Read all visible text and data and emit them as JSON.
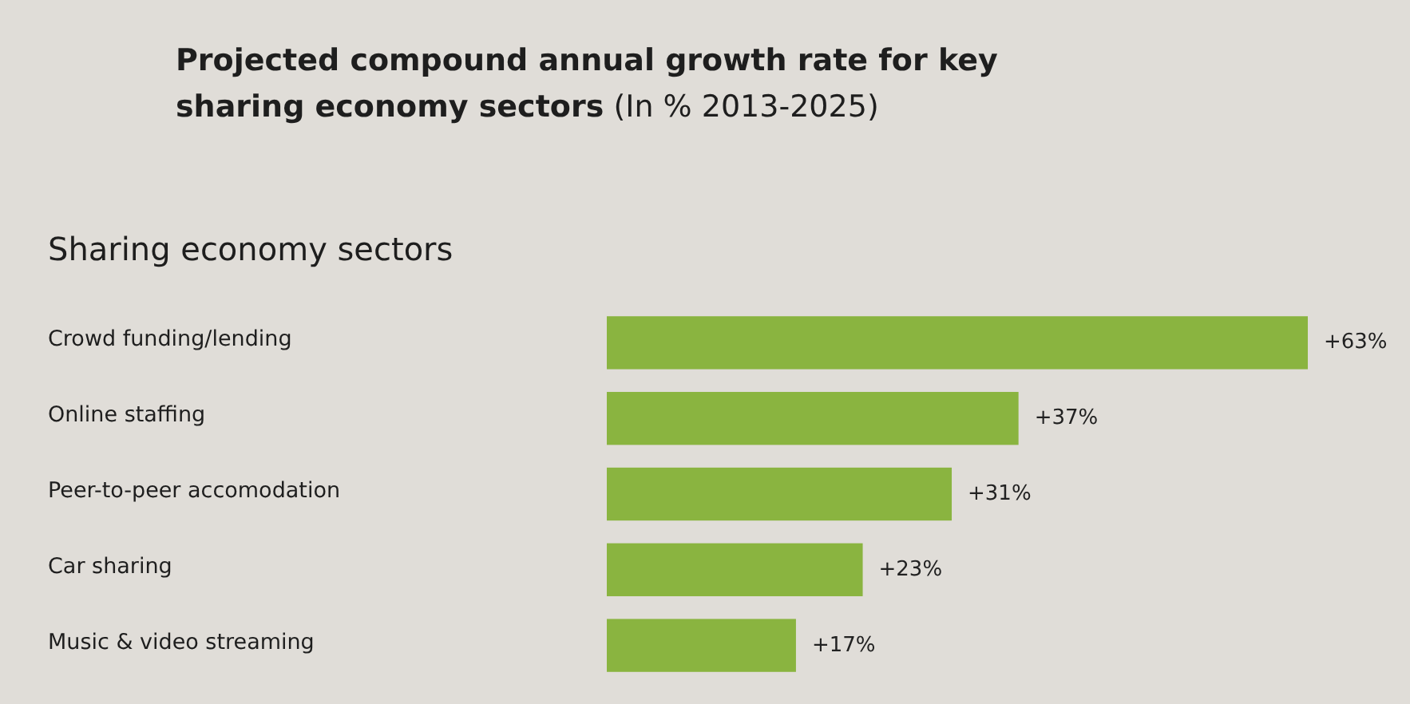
{
  "chart_data": {
    "type": "bar",
    "orientation": "horizontal",
    "title": "Projected compound annual growth rate for key sharing economy sectors",
    "subtitle": "(In % 2013-2025)",
    "ylabel": "Sharing economy sectors",
    "categories": [
      "Crowd funding/lending",
      "Online staffing",
      "Peer-to-peer accomodation",
      "Car sharing",
      "Music & video streaming"
    ],
    "values": [
      63,
      37,
      31,
      23,
      17
    ],
    "value_labels": [
      "+63%",
      "+37%",
      "+31%",
      "+23%",
      "+17%"
    ],
    "color": "#8ab440"
  }
}
